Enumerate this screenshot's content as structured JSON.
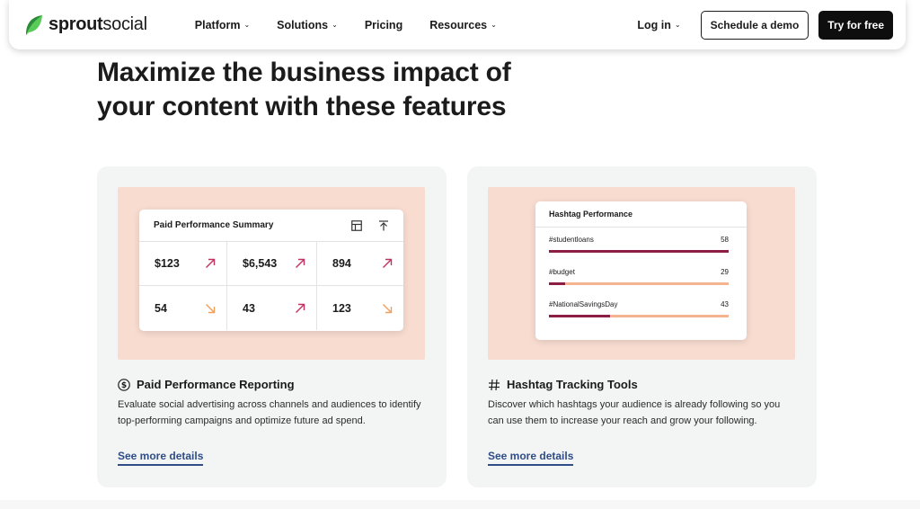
{
  "brand": {
    "name_bold": "sprout",
    "name_light": "social",
    "logo_icon": "sprout-leaf-icon",
    "accent": "#59cb59"
  },
  "nav": {
    "links": [
      {
        "label": "Platform",
        "has_dropdown": true
      },
      {
        "label": "Solutions",
        "has_dropdown": true
      },
      {
        "label": "Pricing",
        "has_dropdown": false
      },
      {
        "label": "Resources",
        "has_dropdown": true
      }
    ],
    "login": "Log in",
    "demo_button": "Schedule a demo",
    "try_button": "Try for free"
  },
  "page": {
    "heading_line1": "Maximize the business impact of",
    "heading_line2": "your content with these features"
  },
  "cards": [
    {
      "title": "Paid Performance Reporting",
      "icon": "dollar-circle-icon",
      "description": "Evaluate social advertising across channels and audiences to identify top-performing campaigns and optimize future ad spend.",
      "link": "See more details",
      "widget": {
        "title": "Paid Performance Summary",
        "icons": [
          "table-icon",
          "export-icon"
        ],
        "cells": [
          {
            "value": "$123",
            "trend": "up"
          },
          {
            "value": "$6,543",
            "trend": "up"
          },
          {
            "value": "894",
            "trend": "up"
          },
          {
            "value": "54",
            "trend": "down"
          },
          {
            "value": "43",
            "trend": "up"
          },
          {
            "value": "123",
            "trend": "down"
          }
        ]
      }
    },
    {
      "title": "Hashtag Tracking Tools",
      "icon": "hash-icon",
      "description": "Discover which hashtags your audience is already following so you can use them to increase your reach and grow your following.",
      "link": "See more details",
      "widget": {
        "title": "Hashtag Performance",
        "rows": [
          {
            "tag": "#studentloans",
            "count": "58",
            "fill": 1.0
          },
          {
            "tag": "#budget",
            "count": "29",
            "fill": 0.09
          },
          {
            "tag": "#NationalSavingsDay",
            "count": "43",
            "fill": 0.34
          }
        ]
      }
    }
  ],
  "colors": {
    "up_arrow": "#c0325f",
    "down_arrow": "#f0a05a",
    "bar_fill": "#8c1d45",
    "bar_track": "#f3b48f",
    "link": "#2f4d86",
    "visual_bg": "#f8dcd0"
  }
}
